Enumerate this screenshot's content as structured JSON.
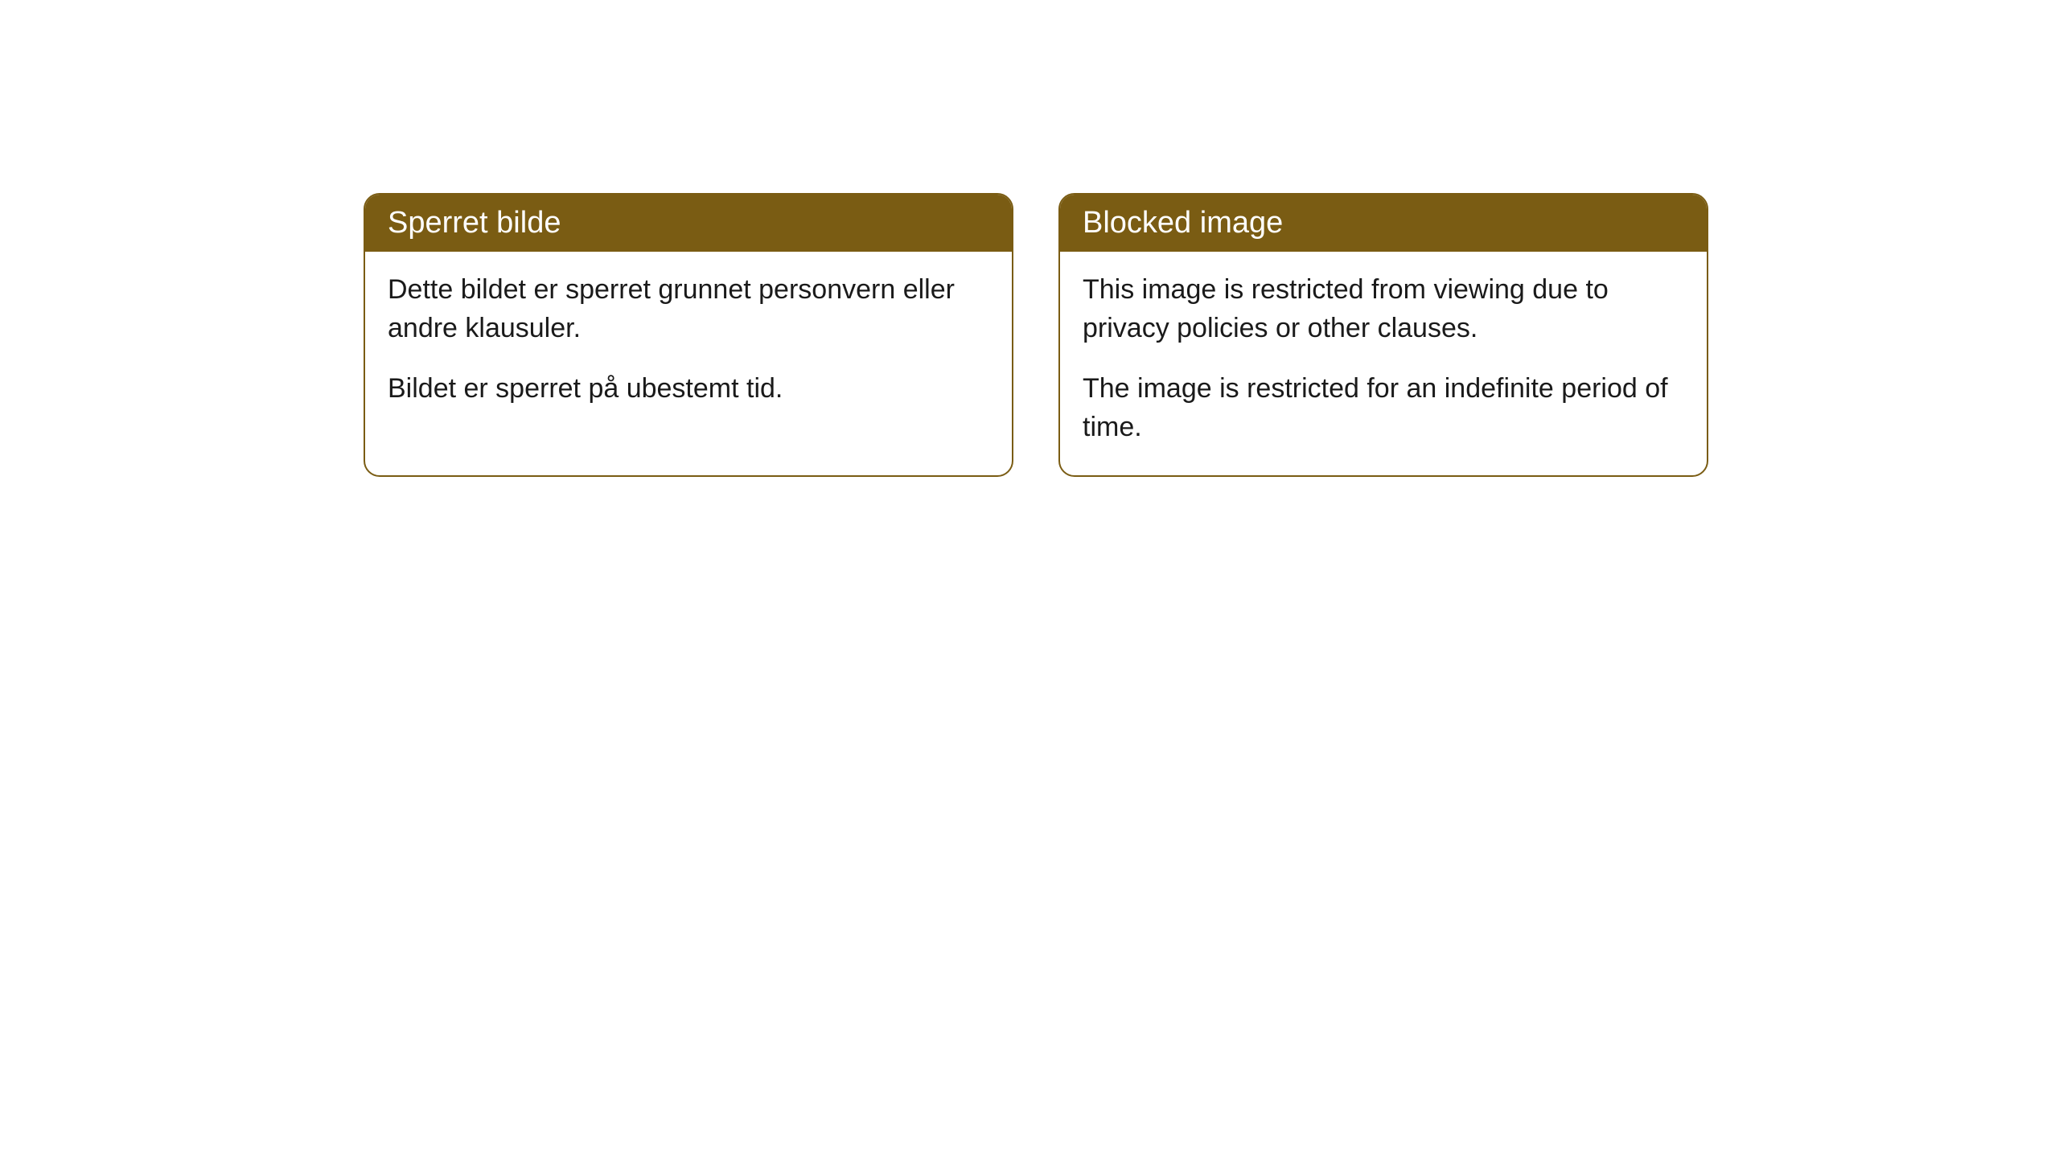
{
  "cards": [
    {
      "title": "Sperret bilde",
      "paragraph1": "Dette bildet er sperret grunnet personvern eller andre klausuler.",
      "paragraph2": "Bildet er sperret på ubestemt tid."
    },
    {
      "title": "Blocked image",
      "paragraph1": "This image is restricted from viewing due to privacy policies or other clauses.",
      "paragraph2": "The image is restricted for an indefinite period of time."
    }
  ],
  "style": {
    "header_background": "#7a5c13",
    "header_text_color": "#ffffff",
    "border_color": "#7a5c13",
    "body_background": "#ffffff",
    "body_text_color": "#1a1a1a",
    "border_radius": "20px",
    "title_fontsize": 38,
    "body_fontsize": 34
  }
}
